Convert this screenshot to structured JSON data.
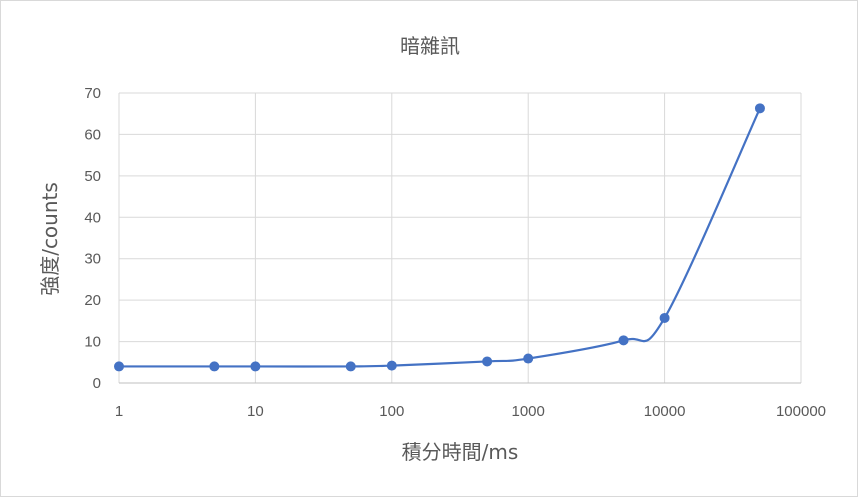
{
  "chart_data": {
    "type": "scatter",
    "title": "暗雜訊",
    "xlabel": "積分時間/ms",
    "ylabel": "強度/counts",
    "xscale": "log",
    "xlim": [
      1,
      100000
    ],
    "ylim": [
      0,
      70
    ],
    "xticks": [
      "1",
      "10",
      "100",
      "1000",
      "10000",
      "100000"
    ],
    "yticks": [
      "0",
      "10",
      "20",
      "30",
      "40",
      "50",
      "60",
      "70"
    ],
    "grid": true,
    "smooth": true,
    "color": "#4472c4",
    "series": [
      {
        "x": [
          1,
          5,
          10,
          50,
          100,
          500,
          1000,
          5000,
          10000,
          50000
        ],
        "y": [
          4.0,
          4.0,
          4.0,
          4.0,
          4.2,
          5.2,
          5.9,
          10.3,
          15.7,
          66.3
        ]
      }
    ]
  }
}
